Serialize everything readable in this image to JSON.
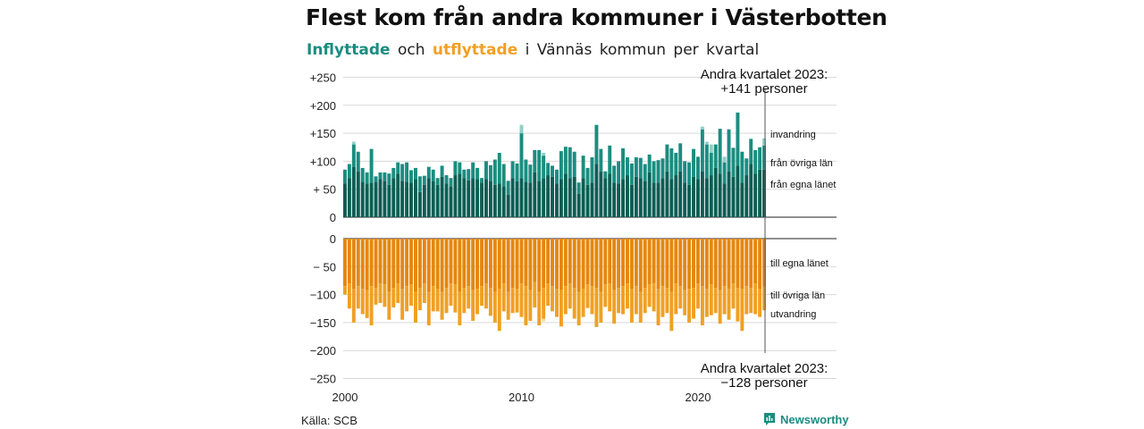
{
  "header": {
    "title": "Flest kom från andra kommuner i Västerbotten",
    "subtitle_in": "Inflyttade",
    "subtitle_and": "och",
    "subtitle_out": "utflyttade",
    "subtitle_rest": "i Vännäs kommun per kvartal"
  },
  "footer": {
    "source": "Källa: SCB",
    "brand": "Newsworthy"
  },
  "colors": {
    "in_own_county": "#0b5e54",
    "in_other_counties": "#1a8d80",
    "in_immigration": "#8fd0c6",
    "out_own_county": "#e5870e",
    "out_other_counties": "#f0a024",
    "out_emigration": "#f9d9a6"
  },
  "chart_data": {
    "type": "bar",
    "stacked": true,
    "x_start": "2000 Q1",
    "x_ticks": [
      "2000",
      "2010",
      "2020"
    ],
    "y_ticks_top": [
      "+250",
      "+200",
      "+150",
      "+100",
      "+ 50",
      "0"
    ],
    "y_ticks_bottom": [
      "0",
      "− 50",
      "−100",
      "−150",
      "−200",
      "−250"
    ],
    "ylim": [
      -250,
      250
    ],
    "grid": true,
    "series_in": [
      {
        "name": "från egna länet",
        "values": [
          60,
          70,
          90,
          82,
          63,
          60,
          62,
          63,
          68,
          65,
          58,
          70,
          78,
          65,
          63,
          62,
          68,
          45,
          58,
          70,
          65,
          58,
          72,
          60,
          55,
          75,
          78,
          70,
          66,
          70,
          68,
          62,
          68,
          65,
          58,
          60,
          55,
          40,
          70,
          64,
          70,
          63,
          62,
          80,
          65,
          70,
          75,
          72,
          60,
          68,
          78,
          70,
          72,
          42,
          70,
          58,
          62,
          95,
          82,
          70,
          78,
          62,
          60,
          68,
          75,
          58,
          72,
          70,
          65,
          80,
          62,
          62,
          70,
          82,
          68,
          75,
          82,
          62,
          58,
          72,
          68,
          82,
          70,
          75,
          88,
          78,
          60,
          82,
          72,
          92,
          62,
          75,
          95,
          78,
          85,
          85
        ]
      },
      {
        "name": "från övriga län",
        "values": [
          25,
          25,
          40,
          35,
          25,
          20,
          60,
          10,
          12,
          15,
          20,
          18,
          20,
          30,
          35,
          22,
          20,
          28,
          16,
          20,
          20,
          12,
          20,
          15,
          15,
          25,
          20,
          15,
          20,
          28,
          20,
          8,
          32,
          28,
          45,
          55,
          40,
          25,
          30,
          32,
          80,
          40,
          32,
          40,
          55,
          40,
          22,
          20,
          25,
          50,
          48,
          55,
          45,
          20,
          40,
          30,
          45,
          70,
          40,
          12,
          50,
          30,
          40,
          55,
          32,
          38,
          35,
          36,
          30,
          32,
          38,
          40,
          35,
          48,
          55,
          40,
          50,
          38,
          40,
          50,
          40,
          75,
          60,
          40,
          42,
          80,
          38,
          75,
          52,
          95,
          55,
          30,
          45,
          42,
          40,
          43
        ]
      },
      {
        "name": "invandring",
        "values": [
          0,
          0,
          5,
          0,
          0,
          0,
          0,
          0,
          0,
          0,
          0,
          0,
          0,
          0,
          0,
          0,
          0,
          0,
          0,
          0,
          0,
          0,
          0,
          0,
          0,
          0,
          0,
          0,
          0,
          0,
          0,
          0,
          0,
          0,
          0,
          0,
          0,
          0,
          0,
          0,
          15,
          0,
          0,
          0,
          0,
          5,
          0,
          0,
          0,
          0,
          0,
          0,
          0,
          0,
          0,
          0,
          0,
          0,
          0,
          0,
          0,
          0,
          0,
          0,
          0,
          0,
          0,
          0,
          0,
          0,
          0,
          0,
          0,
          0,
          0,
          0,
          0,
          0,
          0,
          0,
          0,
          5,
          5,
          15,
          0,
          0,
          10,
          0,
          0,
          0,
          0,
          0,
          0,
          0,
          0,
          13
        ]
      }
    ],
    "series_out": [
      {
        "name": "till egna länet",
        "values": [
          85,
          80,
          90,
          85,
          90,
          92,
          85,
          88,
          80,
          82,
          95,
          88,
          80,
          90,
          85,
          82,
          95,
          88,
          80,
          95,
          85,
          90,
          95,
          88,
          80,
          82,
          95,
          88,
          85,
          92,
          90,
          85,
          80,
          88,
          95,
          90,
          80,
          95,
          88,
          90,
          80,
          85,
          92,
          78,
          95,
          88,
          80,
          85,
          90,
          92,
          85,
          80,
          88,
          95,
          90,
          82,
          85,
          88,
          95,
          82,
          80,
          92,
          88,
          85,
          80,
          90,
          85,
          95,
          88,
          82,
          80,
          90,
          85,
          88,
          95,
          80,
          85,
          92,
          90,
          88,
          80,
          85,
          90,
          82,
          88,
          92,
          85,
          90,
          80,
          88,
          90,
          85,
          88,
          80,
          90,
          86
        ]
      },
      {
        "name": "till övriga län",
        "values": [
          15,
          45,
          60,
          40,
          45,
          50,
          70,
          30,
          35,
          40,
          50,
          35,
          35,
          55,
          45,
          38,
          55,
          40,
          35,
          60,
          45,
          40,
          50,
          45,
          40,
          50,
          60,
          45,
          40,
          55,
          45,
          35,
          45,
          50,
          55,
          75,
          50,
          50,
          45,
          42,
          60,
          70,
          55,
          45,
          60,
          55,
          40,
          45,
          50,
          65,
          50,
          45,
          55,
          60,
          50,
          42,
          50,
          70,
          55,
          40,
          50,
          60,
          45,
          50,
          45,
          60,
          50,
          55,
          45,
          40,
          50,
          65,
          55,
          45,
          70,
          55,
          40,
          45,
          60,
          55,
          45,
          70,
          50,
          55,
          45,
          60,
          50,
          55,
          45,
          60,
          75,
          50,
          45,
          55,
          50,
          42
        ]
      },
      {
        "name": "utvandring",
        "values": [
          0,
          0,
          0,
          0,
          0,
          0,
          0,
          0,
          0,
          0,
          0,
          0,
          0,
          0,
          0,
          0,
          0,
          0,
          0,
          0,
          0,
          0,
          0,
          0,
          0,
          0,
          0,
          0,
          0,
          0,
          0,
          0,
          0,
          0,
          0,
          0,
          0,
          0,
          0,
          0,
          0,
          0,
          0,
          0,
          0,
          5,
          0,
          0,
          0,
          0,
          0,
          0,
          0,
          0,
          0,
          0,
          0,
          0,
          0,
          0,
          0,
          0,
          0,
          0,
          0,
          0,
          0,
          0,
          0,
          0,
          0,
          0,
          0,
          0,
          0,
          0,
          0,
          0,
          0,
          0,
          0,
          0,
          0,
          0,
          0,
          0,
          0,
          0,
          0,
          0,
          0,
          0,
          0,
          0,
          0,
          0
        ]
      }
    ],
    "latest_in_label": "Andra kvartalet 2023:",
    "latest_in_value": "+141 personer",
    "latest_out_label": "Andra kvartalet 2023:",
    "latest_out_value": "−128 personer",
    "in_labels": [
      "invandring",
      "från övriga län",
      "från egna länet"
    ],
    "out_labels": [
      "till egna länet",
      "till övriga län",
      "utvandring"
    ]
  }
}
